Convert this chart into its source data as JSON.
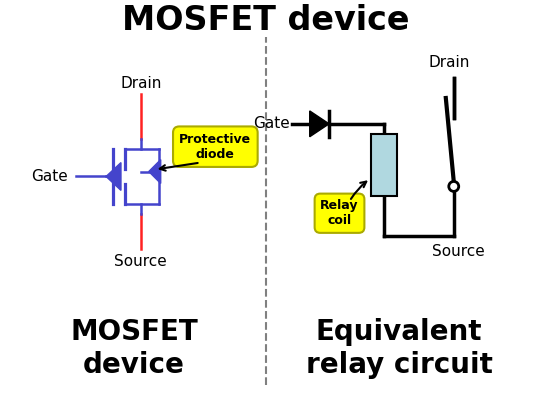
{
  "title": "MOSFET device",
  "title_fontsize": 24,
  "bg_color": "#ffffff",
  "left_label": "MOSFET\ndevice",
  "right_label": "Equivalent\nrelay circuit",
  "label_fontsize": 20,
  "mosfet_color": "#4444cc",
  "relay_coil_color": "#b0d8e0",
  "relay_coil_edge": "#000000",
  "yellow_box": "#ffff00",
  "yellow_box_edge": "#aaaa00",
  "red_wire": "#ff2222",
  "black": "#000000"
}
